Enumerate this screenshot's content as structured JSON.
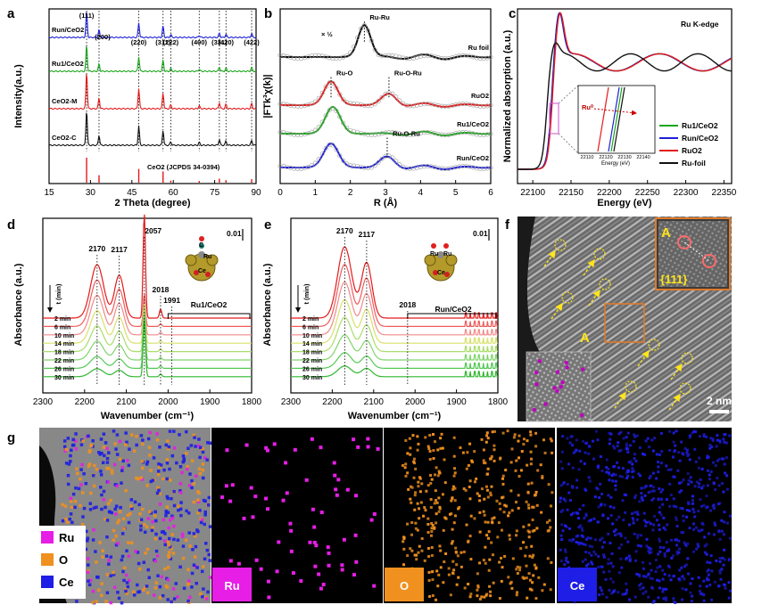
{
  "panels": {
    "a": "a",
    "b": "b",
    "c": "c",
    "d": "d",
    "e": "e",
    "f": "f",
    "g": "g"
  },
  "chart_data": [
    {
      "panel": "a",
      "type": "line",
      "xlabel": "2 Theta (degree)",
      "ylabel": "Intensity(a.u.)",
      "xlim": [
        15,
        90
      ],
      "xticks": [
        15,
        30,
        45,
        60,
        75,
        90
      ],
      "series": [
        {
          "name": "Run/CeO2",
          "color": "#1f1fd8"
        },
        {
          "name": "Ru1/CeO2",
          "color": "#1aa61a"
        },
        {
          "name": "CeO2-M",
          "color": "#e31a1a"
        },
        {
          "name": "CeO2-C",
          "color": "#111111"
        }
      ],
      "peaks": [
        {
          "x": 28.6,
          "label": "(111)",
          "h": 1.0
        },
        {
          "x": 33.1,
          "label": "(200)",
          "h": 0.28
        },
        {
          "x": 47.5,
          "label": "(220)",
          "h": 0.55
        },
        {
          "x": 56.3,
          "label": "(311)",
          "h": 0.42
        },
        {
          "x": 59.1,
          "label": "(222)",
          "h": 0.1
        },
        {
          "x": 69.4,
          "label": "(400)",
          "h": 0.08
        },
        {
          "x": 76.7,
          "label": "(331)",
          "h": 0.16
        },
        {
          "x": 79.1,
          "label": "(420)",
          "h": 0.12
        },
        {
          "x": 88.4,
          "label": "(422)",
          "h": 0.14
        }
      ],
      "reference": {
        "name": "CeO2 (JCPDS 34-0394)",
        "color": "#e31a1a",
        "x": [
          28.6,
          33.1,
          47.5,
          56.3,
          59.1,
          69.4,
          76.7,
          79.1,
          88.4
        ],
        "h": [
          1.0,
          0.3,
          0.55,
          0.45,
          0.08,
          0.07,
          0.16,
          0.1,
          0.14
        ]
      }
    },
    {
      "panel": "b",
      "type": "line",
      "xlabel": "R (Å)",
      "ylabel": "|FTk³χ(k)|",
      "xlim": [
        0,
        6
      ],
      "xticks": [
        0,
        1,
        2,
        3,
        4,
        5,
        6
      ],
      "scale_note": "× ½",
      "series": [
        {
          "name": "Ru foil",
          "color": "#111111",
          "peaks": [
            [
              2.4,
              1.0,
              0.25
            ]
          ],
          "annot": [
            {
              "x": 2.4,
              "label": "Ru-Ru"
            }
          ]
        },
        {
          "name": "RuO2",
          "color": "#e31a1a",
          "peaks": [
            [
              1.45,
              0.95,
              0.28
            ],
            [
              3.1,
              0.45,
              0.3
            ]
          ],
          "annot": [
            {
              "x": 1.45,
              "label": "Ru-O"
            },
            {
              "x": 3.1,
              "label": "Ru-O-Ru"
            }
          ]
        },
        {
          "name": "Ru1/CeO2",
          "color": "#1aa61a",
          "peaks": [
            [
              1.5,
              1.0,
              0.3
            ]
          ],
          "annot": []
        },
        {
          "name": "Run/CeO2",
          "color": "#1f1fd8",
          "peaks": [
            [
              1.45,
              0.9,
              0.3
            ],
            [
              3.05,
              0.4,
              0.3
            ]
          ],
          "annot": [
            {
              "x": 3.05,
              "label": "Ru-O-Ru"
            }
          ]
        }
      ]
    },
    {
      "panel": "c",
      "type": "line",
      "title": "Ru K-edge",
      "xlabel": "Energy (eV)",
      "ylabel": "Normalized absorption (a.u.)",
      "xlim": [
        22080,
        22360
      ],
      "xticks": [
        22100,
        22150,
        22200,
        22250,
        22300,
        22350
      ],
      "inset": {
        "xlabel": "Energy (eV)",
        "xticks": [
          22110,
          22120,
          22130,
          22140
        ],
        "annotation": "Ru⁰"
      },
      "series": [
        {
          "name": "Ru1/CeO2",
          "color": "#1aa61a"
        },
        {
          "name": "Run/CeO2",
          "color": "#1f1fd8"
        },
        {
          "name": "RuO2",
          "color": "#e31a1a"
        },
        {
          "name": "Ru-foil",
          "color": "#111111"
        }
      ]
    },
    {
      "panel": "d",
      "type": "line",
      "xlabel": "Wavenumber (cm⁻¹)",
      "ylabel": "Absorbance (a.u.)",
      "xlim": [
        2300,
        1800
      ],
      "xticks": [
        2300,
        2200,
        2100,
        2000,
        1900,
        1800
      ],
      "scale_bar": "0.01",
      "sample": "Ru1/CeO2",
      "peaks": [
        2170,
        2117,
        2057,
        2018,
        1991
      ],
      "times": [
        "2 min",
        "6 min",
        "10 min",
        "14 min",
        "18 min",
        "22 min",
        "26 min",
        "30 min"
      ],
      "time_arrow": "t (min)",
      "model_labels": [
        "C",
        "Ru",
        "Ce"
      ]
    },
    {
      "panel": "e",
      "type": "line",
      "xlabel": "Wavenumber (cm⁻¹)",
      "ylabel": "Absorbance (a.u.)",
      "xlim": [
        2300,
        1800
      ],
      "xticks": [
        2300,
        2200,
        2100,
        2000,
        1900,
        1800
      ],
      "scale_bar": "0.01",
      "sample": "Run/CeO2",
      "peaks": [
        2170,
        2117,
        2018
      ],
      "times": [
        "2 min",
        "6 min",
        "10 min",
        "14 min",
        "18 min",
        "22 min",
        "26 min",
        "30 min"
      ],
      "time_arrow": "t (min)",
      "model_labels": [
        "Ru",
        "Ru",
        "Ce"
      ]
    }
  ],
  "micrograph": {
    "region_label": "A",
    "inset_label": "A",
    "facet": "{111}",
    "scale_bar": "2 nm"
  },
  "eds": {
    "legend": [
      "Ru",
      "O",
      "Ce"
    ],
    "colors": {
      "Ru": "#e61ee6",
      "O": "#f0901e",
      "Ce": "#1e1ee6"
    },
    "maps": [
      "Ru",
      "O",
      "Ce"
    ]
  },
  "trace_colors_d": [
    "#e31a1a",
    "#ef5b5b",
    "#f28a8a",
    "#d8e06a",
    "#a9dd6a",
    "#7fd46a",
    "#55c955",
    "#2fb62f"
  ]
}
